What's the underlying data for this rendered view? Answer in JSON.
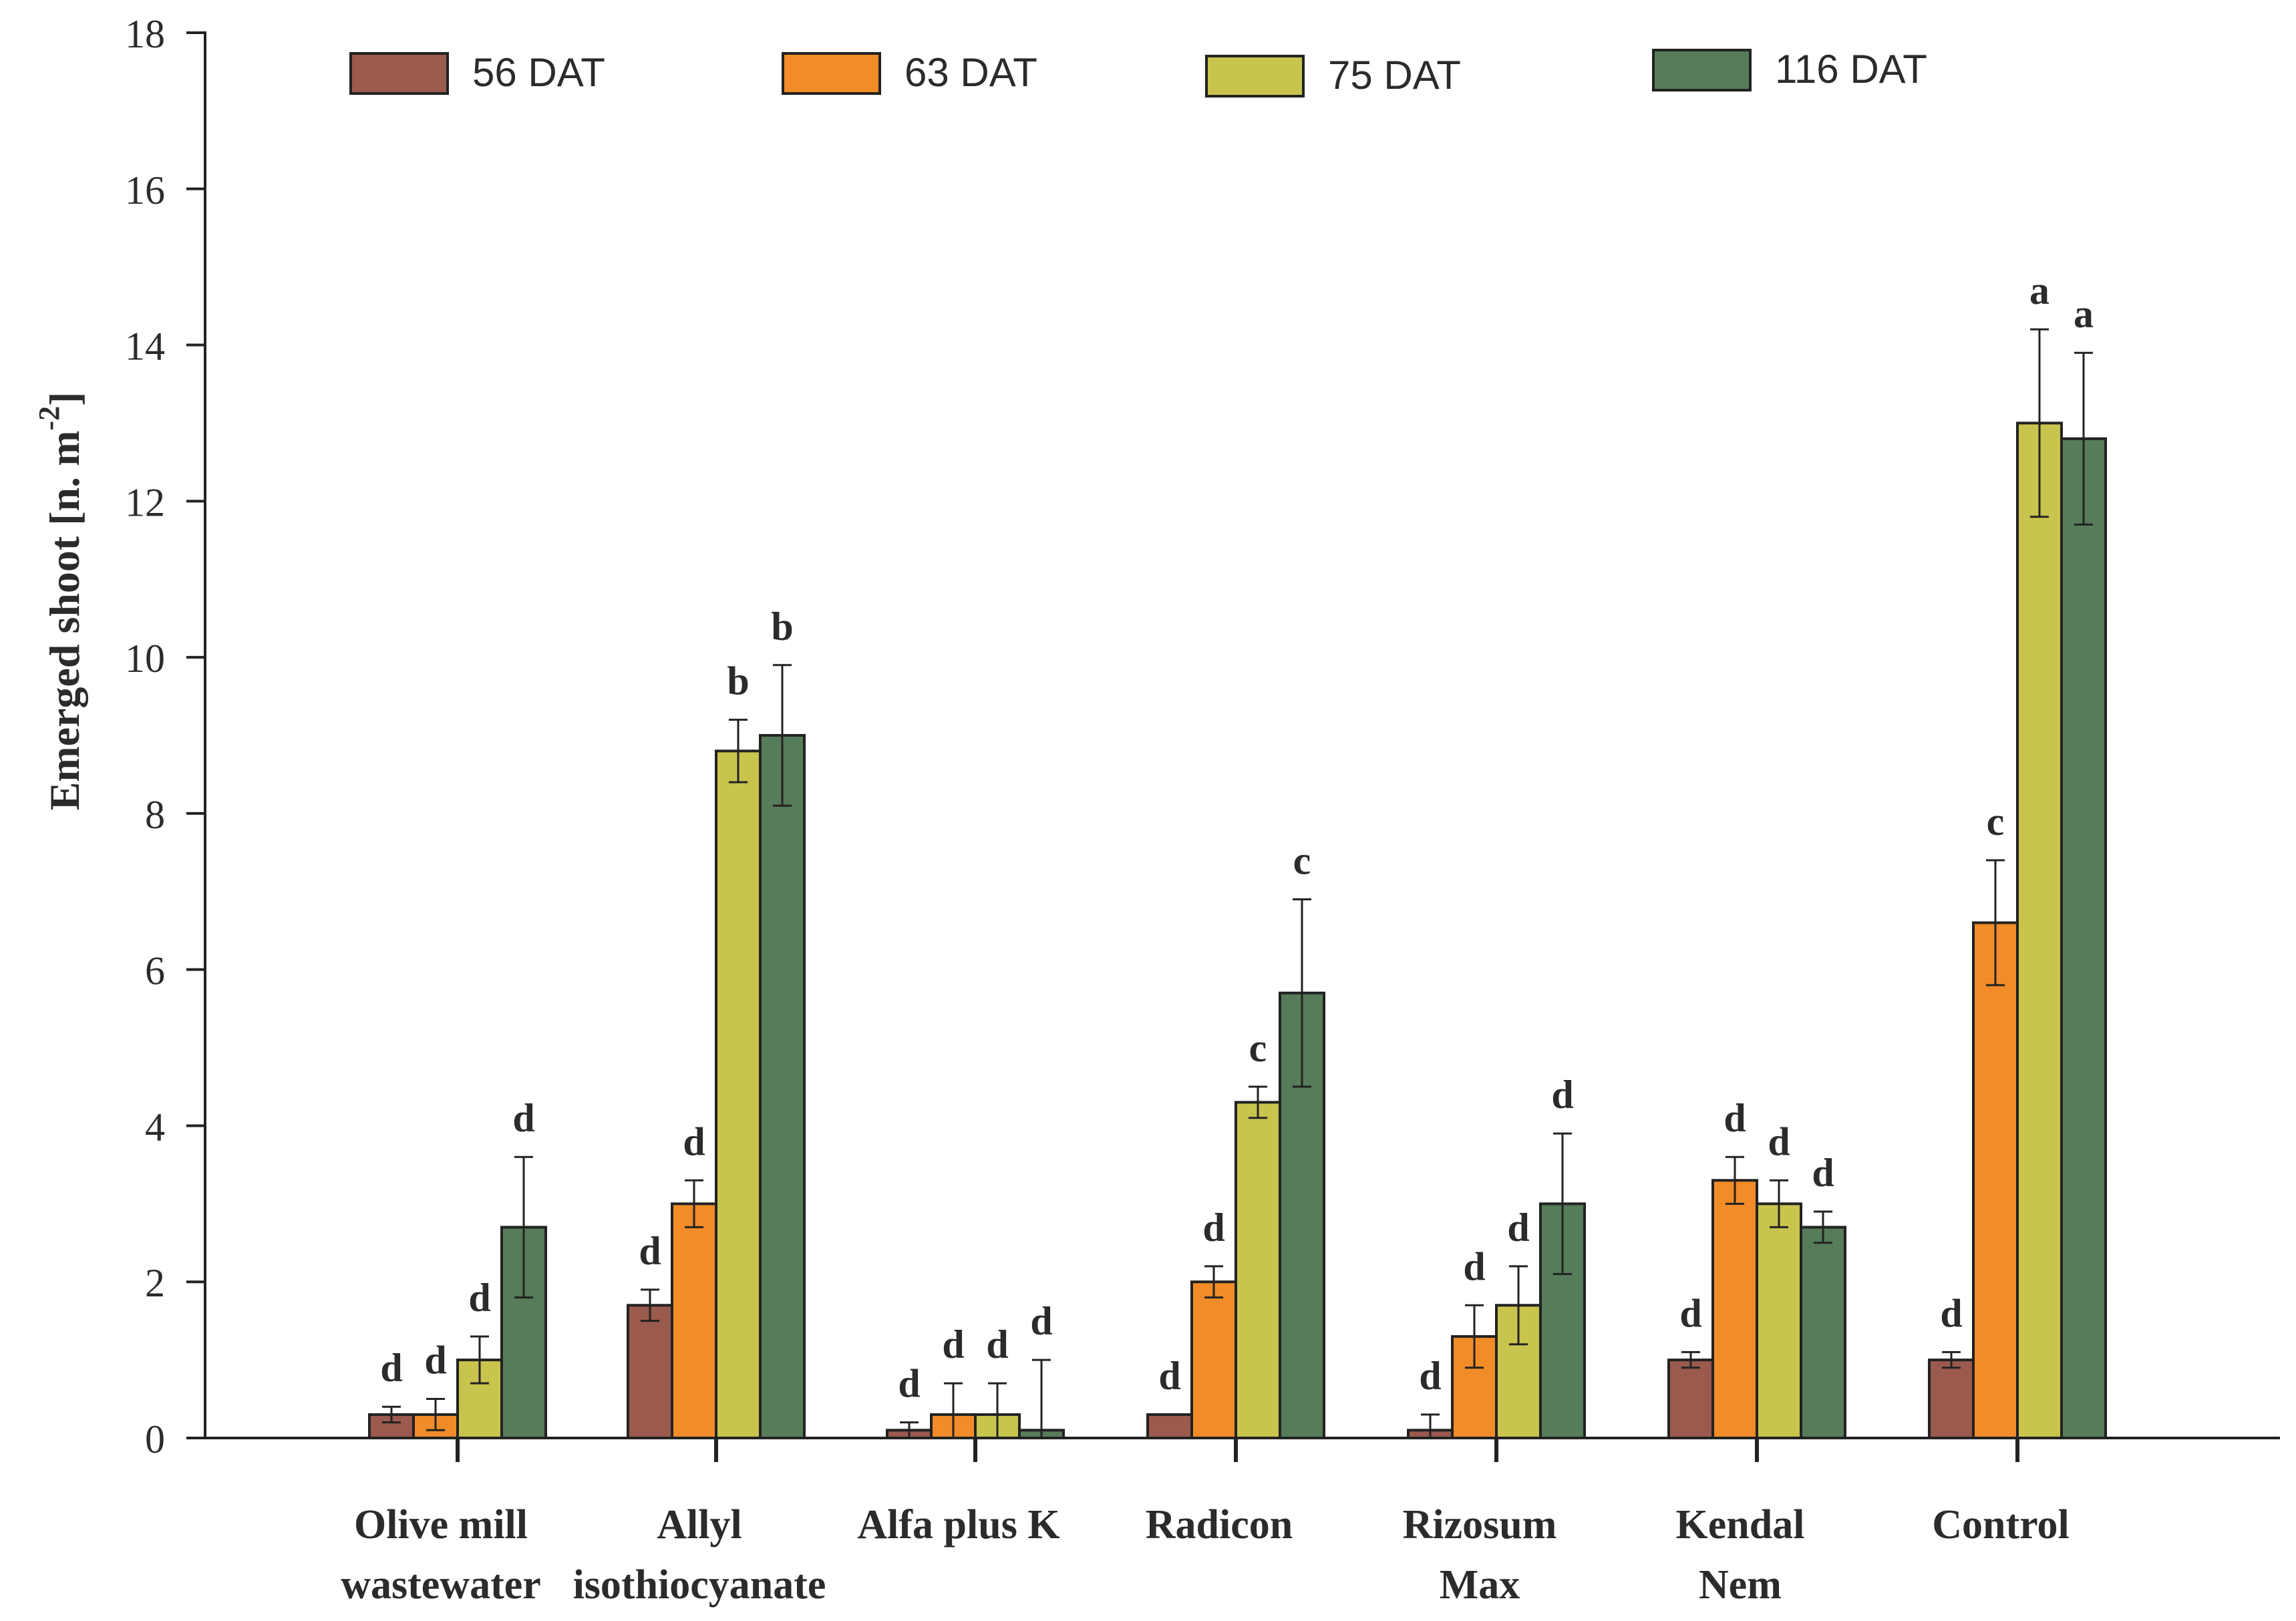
{
  "chart_data": {
    "type": "bar",
    "title": "",
    "xlabel": "",
    "ylabel": "Emerged shoot [n. m",
    "ylabel_superscript": "-2",
    "ylabel_close": "]",
    "ylim": [
      0,
      18
    ],
    "yticks": [
      0,
      2,
      4,
      6,
      8,
      10,
      12,
      14,
      16,
      18
    ],
    "grid": false,
    "legend_position": "top",
    "categories": [
      [
        "Olive mill",
        "wastewater"
      ],
      [
        "Allyl",
        "isothiocyanate"
      ],
      [
        "Alfa plus K"
      ],
      [
        "Radicon"
      ],
      [
        "Rizosum",
        "Max"
      ],
      [
        "Kendal",
        "Nem"
      ],
      [
        "Control"
      ]
    ],
    "series": [
      {
        "name": "56 DAT",
        "color": "#9a5a4d",
        "values": [
          0.3,
          1.7,
          0.1,
          0.3,
          0.1,
          1.0,
          1.0
        ],
        "errors": [
          0.1,
          0.2,
          0.1,
          null,
          0.2,
          0.1,
          0.1
        ],
        "letters": [
          "d",
          "d",
          "d",
          "d",
          "d",
          "d",
          "d"
        ]
      },
      {
        "name": "63 DAT",
        "color": "#f28c28",
        "values": [
          0.3,
          3.0,
          0.3,
          2.0,
          1.3,
          3.3,
          6.6
        ],
        "errors": [
          0.2,
          0.3,
          0.4,
          0.2,
          0.4,
          0.3,
          0.8
        ],
        "letters": [
          "d",
          "d",
          "d",
          "d",
          "d",
          "d",
          "c"
        ]
      },
      {
        "name": "75 DAT",
        "color": "#c9c44e",
        "values": [
          1.0,
          8.8,
          0.3,
          4.3,
          1.7,
          3.0,
          13.0
        ],
        "errors": [
          0.3,
          0.4,
          0.4,
          0.2,
          0.5,
          0.3,
          1.2
        ],
        "letters": [
          "d",
          "b",
          "d",
          "c",
          "d",
          "d",
          "a"
        ]
      },
      {
        "name": "116 DAT",
        "color": "#567c5a",
        "values": [
          2.7,
          9.0,
          0.1,
          5.7,
          3.0,
          2.7,
          12.8
        ],
        "errors": [
          0.9,
          0.9,
          0.9,
          1.2,
          0.9,
          0.2,
          1.1
        ],
        "letters": [
          "d",
          "b",
          "d",
          "c",
          "d",
          "d",
          "a"
        ]
      }
    ]
  }
}
